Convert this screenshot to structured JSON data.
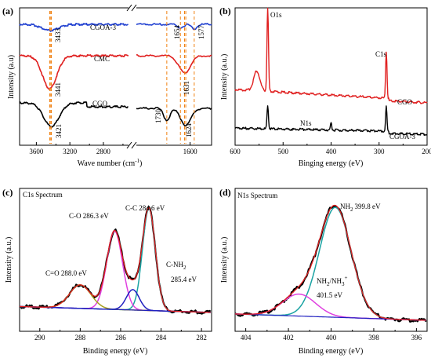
{
  "chart_data": [
    {
      "panel": "(a)",
      "type": "line",
      "xlabel": "Wave number (cm",
      "xlabel_sup": "-1",
      "xlabel_end": ")",
      "ylabel": "Intensity (a.u)",
      "x_axis_break": true,
      "xticks": [
        "3600",
        "3200",
        "2800",
        "1600"
      ],
      "series": [
        {
          "name": "CGOA-3",
          "color": "#1f3fd0",
          "peaks": [
            {
              "label": "3433",
              "x": 3433
            },
            {
              "label": "1654",
              "x": 1654
            },
            {
              "label": "1577",
              "x": 1577
            }
          ]
        },
        {
          "name": "CMC",
          "color": "#e02020",
          "peaks": [
            {
              "label": "3441",
              "x": 3441
            },
            {
              "label": "1631",
              "x": 1631
            }
          ]
        },
        {
          "name": "CGO",
          "color": "#000000",
          "peaks": [
            {
              "label": "3421",
              "x": 3421
            },
            {
              "label": "1730",
              "x": 1730
            },
            {
              "label": "1624",
              "x": 1624
            }
          ]
        }
      ]
    },
    {
      "panel": "(b)",
      "type": "line",
      "xlabel": "Binging energy (eV)",
      "ylabel": "Intensity (a.u.)",
      "xlim": [
        600,
        200
      ],
      "xticks": [
        "600",
        "500",
        "400",
        "300",
        "200"
      ],
      "annotations": [
        "O1s",
        "C1s",
        "N1s"
      ],
      "series": [
        {
          "name": "CGO",
          "color": "#e02020"
        },
        {
          "name": "CGOA-3",
          "color": "#000000"
        }
      ]
    },
    {
      "panel": "(c)",
      "title": "C1s Spectrum",
      "type": "line",
      "xlabel": "Binding energy (eV)",
      "ylabel": "Intensity (a.u.)",
      "xlim": [
        291,
        281.5
      ],
      "xticks": [
        "290",
        "288",
        "286",
        "284",
        "282"
      ],
      "components": [
        {
          "label": "C-C 284.6 eV",
          "center": 284.6,
          "color": "#1aa3a3"
        },
        {
          "label": "C-O 286.3 eV",
          "center": 286.3,
          "color": "#e040e0"
        },
        {
          "label": "C=O 288.0 eV",
          "center": 288.0,
          "color": "#a8a020"
        },
        {
          "label_main": "C-NH",
          "label_sub": "2",
          "label_value": "285.4 eV",
          "center": 285.4,
          "color": "#2020c0"
        }
      ]
    },
    {
      "panel": "(d)",
      "title": "N1s Spectrum",
      "type": "line",
      "xlabel": "Binding energy (eV)",
      "ylabel": "Intensity (a.u.)",
      "xlim": [
        404.5,
        395.5
      ],
      "xticks": [
        "404",
        "402",
        "400",
        "398",
        "396"
      ],
      "components": [
        {
          "label_main": "NH",
          "label_sub": "2",
          "label_value": "399.8 eV",
          "center": 399.8,
          "color": "#1aa3a3"
        },
        {
          "label_main": "NH",
          "label_sub": "2",
          "label_sep": "/NH",
          "label_sub2": "3",
          "label_sup2": "+",
          "label_value": "401.5 eV",
          "center": 401.5,
          "color": "#e040e0"
        }
      ]
    }
  ]
}
